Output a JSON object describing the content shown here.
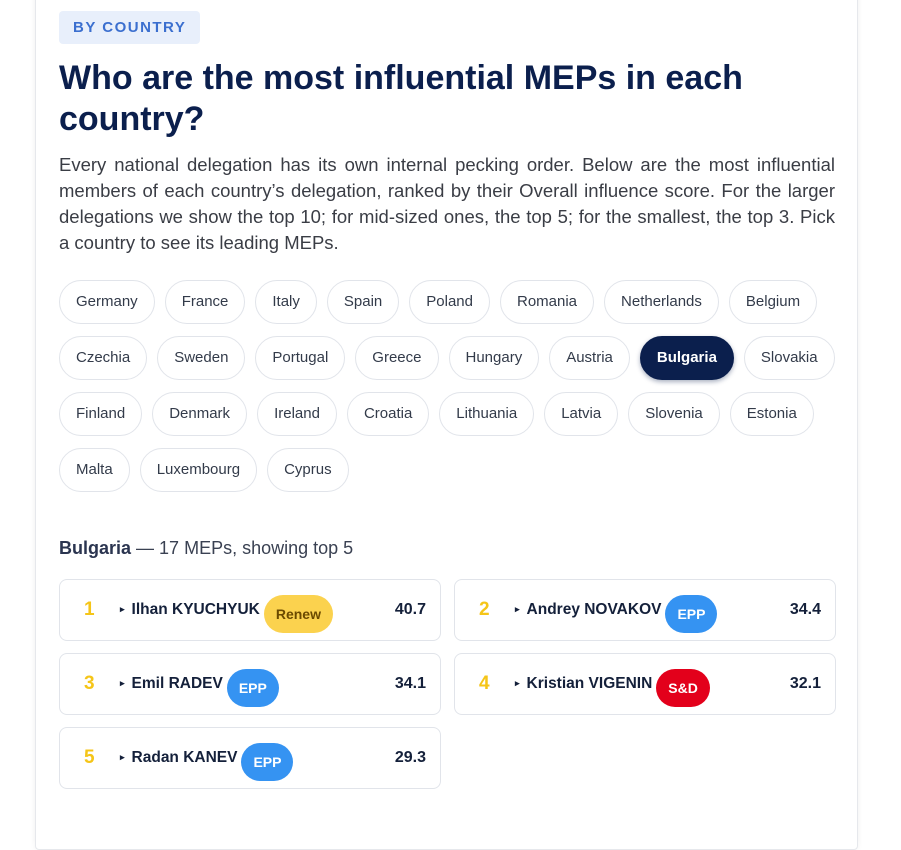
{
  "tag": "BY COUNTRY",
  "title": "Who are the most influential MEPs in each country?",
  "intro": "Every national delegation has its own internal pecking order. Below are the most influential members of each country’s delegation, ranked by their Overall influence score. For the larger delegations we show the top 10; for mid-sized ones, the top 5; for the smallest, the top 3. Pick a country to see its leading MEPs.",
  "countries": [
    "Germany",
    "France",
    "Italy",
    "Spain",
    "Poland",
    "Romania",
    "Netherlands",
    "Belgium",
    "Czechia",
    "Sweden",
    "Portugal",
    "Greece",
    "Hungary",
    "Austria",
    "Bulgaria",
    "Slovakia",
    "Finland",
    "Denmark",
    "Ireland",
    "Croatia",
    "Lithuania",
    "Latvia",
    "Slovenia",
    "Estonia",
    "Malta",
    "Luxembourg",
    "Cyprus"
  ],
  "selected_index": 14,
  "summary": "— 17 MEPs, showing top 5",
  "meps": [
    {
      "rank": 1,
      "name": "Ilhan KYUCHYUK",
      "group": "Renew",
      "color": "#fbd24e",
      "text_color": "#6b4a00",
      "score": 40.7
    },
    {
      "rank": 2,
      "name": "Andrey NOVAKOV",
      "group": "EPP",
      "color": "#3593f2",
      "text_color": "#ffffff",
      "score": 34.4
    },
    {
      "rank": 3,
      "name": "Emil RADEV",
      "group": "EPP",
      "color": "#3593f2",
      "text_color": "#ffffff",
      "score": 34.1
    },
    {
      "rank": 4,
      "name": "Kristian VIGENIN",
      "group": "S&D",
      "color": "#e3001b",
      "text_color": "#ffffff",
      "score": 32.1
    },
    {
      "rank": 5,
      "name": "Radan KANEV",
      "group": "EPP",
      "color": "#3593f2",
      "text_color": "#ffffff",
      "score": 29.3
    }
  ]
}
